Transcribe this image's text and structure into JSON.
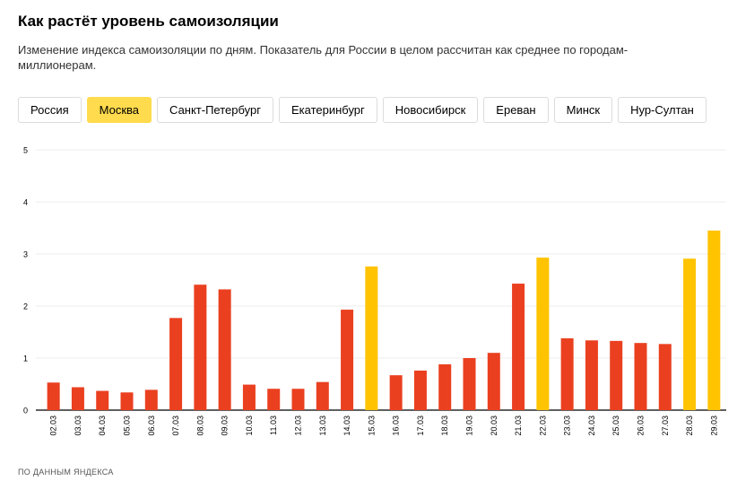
{
  "header": {
    "title": "Как растёт уровень самоизоляции",
    "subtitle": "Изменение индекса самоизоляции по дням. Показатель для России в целом рассчитан как среднее по городам-миллионерам."
  },
  "tabs": [
    {
      "label": "Россия",
      "active": false
    },
    {
      "label": "Москва",
      "active": true
    },
    {
      "label": "Санкт-Петербург",
      "active": false
    },
    {
      "label": "Екатеринбург",
      "active": false
    },
    {
      "label": "Новосибирск",
      "active": false
    },
    {
      "label": "Ереван",
      "active": false
    },
    {
      "label": "Минск",
      "active": false
    },
    {
      "label": "Нур-Султан",
      "active": false
    }
  ],
  "colors": {
    "weekday": "#ea4020",
    "weekend": "#ffc300",
    "grid": "#ececec",
    "active_tab": "#ffdb4d"
  },
  "chart_data": {
    "type": "bar",
    "title": "",
    "xlabel": "",
    "ylabel": "",
    "ylim": [
      0,
      5
    ],
    "yticks": [
      0,
      1,
      2,
      3,
      4,
      5
    ],
    "grid": true,
    "categories": [
      "02.03",
      "03.03",
      "04.03",
      "05.03",
      "06.03",
      "07.03",
      "08.03",
      "09.03",
      "10.03",
      "11.03",
      "12.03",
      "13.03",
      "14.03",
      "15.03",
      "16.03",
      "17.03",
      "18.03",
      "19.03",
      "20.03",
      "21.03",
      "22.03",
      "23.03",
      "24.03",
      "25.03",
      "26.03",
      "27.03",
      "28.03",
      "29.03"
    ],
    "values": [
      0.53,
      0.44,
      0.37,
      0.34,
      0.39,
      1.77,
      2.41,
      2.32,
      0.49,
      0.41,
      0.41,
      0.54,
      1.93,
      2.76,
      0.67,
      0.76,
      0.88,
      1.0,
      1.1,
      2.43,
      2.93,
      1.38,
      1.34,
      1.33,
      1.29,
      1.27,
      2.91,
      3.45
    ],
    "highlight": [
      false,
      false,
      false,
      false,
      false,
      false,
      false,
      false,
      false,
      false,
      false,
      false,
      false,
      true,
      false,
      false,
      false,
      false,
      false,
      false,
      true,
      false,
      false,
      false,
      false,
      false,
      true,
      true
    ]
  },
  "footer": {
    "source": "ПО ДАННЫМ ЯНДЕКСА"
  }
}
